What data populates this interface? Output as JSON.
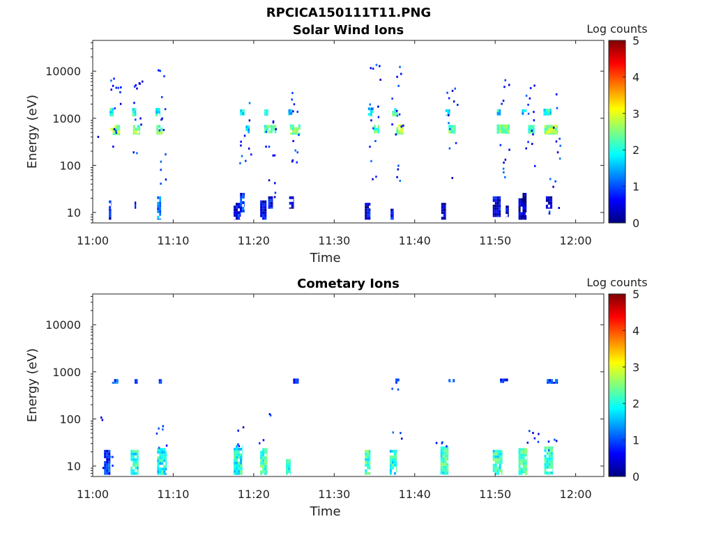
{
  "figure_title": "RPCICA150111T11.PNG",
  "colors": {
    "colormap": [
      "#00007f",
      "#0000ff",
      "#007fff",
      "#00ffff",
      "#7fff7f",
      "#ffff00",
      "#ff7f00",
      "#ff0000",
      "#7f0000"
    ],
    "axes": "#222222",
    "background": "#ffffff"
  },
  "chart_data": [
    {
      "type": "heatmap",
      "title": "Solar Wind Ions",
      "xlabel": "Time",
      "ylabel": "Energy (eV)",
      "x_ticks": [
        {
          "value": 0,
          "label": "11:00"
        },
        {
          "value": 10,
          "label": "11:10"
        },
        {
          "value": 20,
          "label": "11:20"
        },
        {
          "value": 30,
          "label": "11:30"
        },
        {
          "value": 40,
          "label": "11:40"
        },
        {
          "value": 50,
          "label": "11:50"
        },
        {
          "value": 60,
          "label": "12:00"
        }
      ],
      "xlim": [
        0,
        63.5
      ],
      "y_scale": "log",
      "ylim": [
        6,
        45000
      ],
      "y_ticks": [
        {
          "value": 10,
          "label": "10"
        },
        {
          "value": 100,
          "label": "100"
        },
        {
          "value": 1000,
          "label": "1000"
        },
        {
          "value": 10000,
          "label": "10000"
        }
      ],
      "colorbar": {
        "label": "Log counts",
        "range": [
          0,
          5
        ],
        "ticks": [
          "0",
          "1",
          "2",
          "3",
          "4",
          "5"
        ]
      },
      "bursts_minutes": [
        2.8,
        5.5,
        8.4,
        18.8,
        21.8,
        25.0,
        34.8,
        37.8,
        44.7,
        51.0,
        54.3,
        57.2
      ],
      "blocks": [
        {
          "t0": 2.2,
          "t1": 3.4,
          "e0": 440,
          "e1": 720,
          "level": 2.6
        },
        {
          "t0": 2.1,
          "t1": 2.6,
          "e0": 1100,
          "e1": 1650,
          "level": 2.0
        },
        {
          "t0": 5.0,
          "t1": 5.9,
          "e0": 450,
          "e1": 720,
          "level": 2.5
        },
        {
          "t0": 4.9,
          "t1": 5.4,
          "e0": 1100,
          "e1": 1650,
          "level": 2.0
        },
        {
          "t0": 7.9,
          "t1": 8.7,
          "e0": 450,
          "e1": 720,
          "level": 2.5
        },
        {
          "t0": 7.8,
          "t1": 8.4,
          "e0": 1100,
          "e1": 1650,
          "level": 2.0
        },
        {
          "t0": 18.3,
          "t1": 18.9,
          "e0": 1150,
          "e1": 1550,
          "level": 1.8
        },
        {
          "t0": 19.0,
          "t1": 19.5,
          "e0": 480,
          "e1": 700,
          "level": 1.7
        },
        {
          "t0": 21.3,
          "t1": 22.8,
          "e0": 480,
          "e1": 720,
          "level": 2.2
        },
        {
          "t0": 21.3,
          "t1": 21.8,
          "e0": 1150,
          "e1": 1550,
          "level": 1.8
        },
        {
          "t0": 24.5,
          "t1": 25.8,
          "e0": 450,
          "e1": 740,
          "level": 2.4
        },
        {
          "t0": 24.3,
          "t1": 24.8,
          "e0": 1150,
          "e1": 1550,
          "level": 1.6
        },
        {
          "t0": 34.2,
          "t1": 34.9,
          "e0": 1100,
          "e1": 1700,
          "level": 1.8
        },
        {
          "t0": 34.9,
          "t1": 35.6,
          "e0": 480,
          "e1": 720,
          "level": 2.4
        },
        {
          "t0": 37.2,
          "t1": 37.9,
          "e0": 1100,
          "e1": 1650,
          "level": 2.0
        },
        {
          "t0": 37.7,
          "t1": 38.6,
          "e0": 450,
          "e1": 740,
          "level": 2.6
        },
        {
          "t0": 43.8,
          "t1": 44.4,
          "e0": 1150,
          "e1": 1550,
          "level": 1.6
        },
        {
          "t0": 44.2,
          "t1": 45.1,
          "e0": 470,
          "e1": 720,
          "level": 2.4
        },
        {
          "t0": 50.2,
          "t1": 51.8,
          "e0": 470,
          "e1": 740,
          "level": 2.4
        },
        {
          "t0": 50.2,
          "t1": 50.7,
          "e0": 1150,
          "e1": 1550,
          "level": 1.8
        },
        {
          "t0": 53.3,
          "t1": 53.9,
          "e0": 1150,
          "e1": 1550,
          "level": 1.8
        },
        {
          "t0": 54.1,
          "t1": 54.9,
          "e0": 470,
          "e1": 720,
          "level": 2.2
        },
        {
          "t0": 56.0,
          "t1": 57.0,
          "e0": 1150,
          "e1": 1600,
          "level": 2.0
        },
        {
          "t0": 56.1,
          "t1": 57.8,
          "e0": 450,
          "e1": 720,
          "level": 2.6
        },
        {
          "t0": 2.0,
          "t1": 2.3,
          "e0": 7,
          "e1": 18,
          "level": 0.6
        },
        {
          "t0": 5.2,
          "t1": 5.4,
          "e0": 12,
          "e1": 17,
          "level": 0.4
        },
        {
          "t0": 8.0,
          "t1": 8.5,
          "e0": 7,
          "e1": 22,
          "level": 1.2
        },
        {
          "t0": 17.5,
          "t1": 18.4,
          "e0": 7,
          "e1": 16,
          "level": 0.6
        },
        {
          "t0": 18.3,
          "t1": 18.9,
          "e0": 10,
          "e1": 26,
          "level": 0.8
        },
        {
          "t0": 20.8,
          "t1": 21.6,
          "e0": 7,
          "e1": 18,
          "level": 0.5
        },
        {
          "t0": 21.8,
          "t1": 22.4,
          "e0": 12,
          "e1": 22,
          "level": 0.6
        },
        {
          "t0": 24.4,
          "t1": 25.0,
          "e0": 12,
          "e1": 22,
          "level": 0.4
        },
        {
          "t0": 33.8,
          "t1": 34.5,
          "e0": 7,
          "e1": 16,
          "level": 0.5
        },
        {
          "t0": 37.0,
          "t1": 37.4,
          "e0": 7,
          "e1": 12,
          "level": 0.6
        },
        {
          "t0": 43.3,
          "t1": 43.9,
          "e0": 7,
          "e1": 16,
          "level": 0.4
        },
        {
          "t0": 49.7,
          "t1": 50.7,
          "e0": 8,
          "e1": 22,
          "level": 0.5
        },
        {
          "t0": 51.3,
          "t1": 51.7,
          "e0": 8,
          "e1": 14,
          "level": 0.3
        },
        {
          "t0": 52.9,
          "t1": 53.8,
          "e0": 7,
          "e1": 20,
          "level": 0.3
        },
        {
          "t0": 53.4,
          "t1": 53.9,
          "e0": 7,
          "e1": 26,
          "level": 0.2
        },
        {
          "t0": 56.3,
          "t1": 57.1,
          "e0": 12,
          "e1": 22,
          "level": 0.2
        }
      ],
      "speckle": [
        {
          "t": 2.8,
          "e_lo": 200,
          "e_hi": 8000,
          "n": 14
        },
        {
          "t": 5.6,
          "e_lo": 150,
          "e_hi": 7000,
          "n": 12
        },
        {
          "t": 8.5,
          "e_lo": 40,
          "e_hi": 15000,
          "n": 14
        },
        {
          "t": 18.9,
          "e_lo": 100,
          "e_hi": 3000,
          "n": 10
        },
        {
          "t": 22.0,
          "e_lo": 20,
          "e_hi": 6000,
          "n": 12
        },
        {
          "t": 25.0,
          "e_lo": 70,
          "e_hi": 6000,
          "n": 12
        },
        {
          "t": 35.0,
          "e_lo": 50,
          "e_hi": 18000,
          "n": 16
        },
        {
          "t": 37.8,
          "e_lo": 30,
          "e_hi": 13000,
          "n": 16
        },
        {
          "t": 44.6,
          "e_lo": 40,
          "e_hi": 6000,
          "n": 12
        },
        {
          "t": 51.0,
          "e_lo": 40,
          "e_hi": 10000,
          "n": 12
        },
        {
          "t": 54.3,
          "e_lo": 100,
          "e_hi": 14000,
          "n": 14
        },
        {
          "t": 57.3,
          "e_lo": 6,
          "e_hi": 5000,
          "n": 14
        },
        {
          "t": 0.1,
          "e_lo": 400,
          "e_hi": 500,
          "n": 2
        }
      ]
    },
    {
      "type": "heatmap",
      "title": "Cometary Ions",
      "xlabel": "Time",
      "ylabel": "Energy (eV)",
      "x_ticks": [
        {
          "value": 0,
          "label": "11:00"
        },
        {
          "value": 10,
          "label": "11:10"
        },
        {
          "value": 20,
          "label": "11:20"
        },
        {
          "value": 30,
          "label": "11:30"
        },
        {
          "value": 40,
          "label": "11:40"
        },
        {
          "value": 50,
          "label": "11:50"
        },
        {
          "value": 60,
          "label": "12:00"
        }
      ],
      "xlim": [
        0,
        63.5
      ],
      "y_scale": "log",
      "ylim": [
        6,
        45000
      ],
      "y_ticks": [
        {
          "value": 10,
          "label": "10"
        },
        {
          "value": 100,
          "label": "100"
        },
        {
          "value": 1000,
          "label": "1000"
        },
        {
          "value": 10000,
          "label": "10000"
        }
      ],
      "colorbar": {
        "label": "Log counts",
        "range": [
          0,
          5
        ],
        "ticks": [
          "0",
          "1",
          "2",
          "3",
          "4",
          "5"
        ]
      },
      "blocks": [
        {
          "t0": 2.4,
          "t1": 3.2,
          "e0": 560,
          "e1": 700,
          "level": 1.0
        },
        {
          "t0": 5.2,
          "t1": 5.6,
          "e0": 560,
          "e1": 700,
          "level": 0.9
        },
        {
          "t0": 8.2,
          "t1": 8.6,
          "e0": 560,
          "e1": 700,
          "level": 0.9
        },
        {
          "t0": 24.9,
          "t1": 25.6,
          "e0": 560,
          "e1": 720,
          "level": 1.0
        },
        {
          "t0": 37.6,
          "t1": 38.1,
          "e0": 560,
          "e1": 720,
          "level": 0.9
        },
        {
          "t0": 44.2,
          "t1": 45.0,
          "e0": 600,
          "e1": 700,
          "level": 0.8
        },
        {
          "t0": 50.6,
          "t1": 51.6,
          "e0": 580,
          "e1": 720,
          "level": 0.8
        },
        {
          "t0": 56.4,
          "t1": 57.8,
          "e0": 560,
          "e1": 700,
          "level": 0.9
        },
        {
          "t0": 1.4,
          "t1": 2.2,
          "e0": 6.5,
          "e1": 22,
          "level": 0.8
        },
        {
          "t0": 4.7,
          "t1": 5.7,
          "e0": 6.5,
          "e1": 22,
          "level": 2.0
        },
        {
          "t0": 8.0,
          "t1": 9.2,
          "e0": 6.5,
          "e1": 24,
          "level": 1.9
        },
        {
          "t0": 17.5,
          "t1": 18.6,
          "e0": 6.5,
          "e1": 28,
          "level": 2.0
        },
        {
          "t0": 20.8,
          "t1": 21.7,
          "e0": 6.5,
          "e1": 24,
          "level": 2.2
        },
        {
          "t0": 24.0,
          "t1": 24.6,
          "e0": 6.5,
          "e1": 14,
          "level": 2.1
        },
        {
          "t0": 33.8,
          "t1": 34.5,
          "e0": 6.5,
          "e1": 22,
          "level": 2.2
        },
        {
          "t0": 36.9,
          "t1": 37.8,
          "e0": 6.5,
          "e1": 22,
          "level": 2.0
        },
        {
          "t0": 43.2,
          "t1": 44.2,
          "e0": 6.5,
          "e1": 26,
          "level": 2.2
        },
        {
          "t0": 49.7,
          "t1": 50.9,
          "e0": 6.5,
          "e1": 22,
          "level": 2.1
        },
        {
          "t0": 52.9,
          "t1": 54.0,
          "e0": 6.5,
          "e1": 24,
          "level": 2.3
        },
        {
          "t0": 56.1,
          "t1": 57.2,
          "e0": 6.5,
          "e1": 26,
          "level": 2.2
        }
      ],
      "speckle": [
        {
          "t": 1.8,
          "e_lo": 6,
          "e_hi": 20,
          "n": 4
        },
        {
          "t": 8.5,
          "e_lo": 25,
          "e_hi": 75,
          "n": 6
        },
        {
          "t": 18.0,
          "e_lo": 25,
          "e_hi": 75,
          "n": 4
        },
        {
          "t": 21.3,
          "e_lo": 25,
          "e_hi": 160,
          "n": 4
        },
        {
          "t": 37.6,
          "e_lo": 25,
          "e_hi": 1400,
          "n": 5
        },
        {
          "t": 43.3,
          "e_lo": 25,
          "e_hi": 40,
          "n": 4
        },
        {
          "t": 54.6,
          "e_lo": 30,
          "e_hi": 75,
          "n": 6
        },
        {
          "t": 57.0,
          "e_lo": 20,
          "e_hi": 40,
          "n": 4
        },
        {
          "t": 0.4,
          "e_lo": 70,
          "e_hi": 150,
          "n": 2
        }
      ]
    }
  ]
}
